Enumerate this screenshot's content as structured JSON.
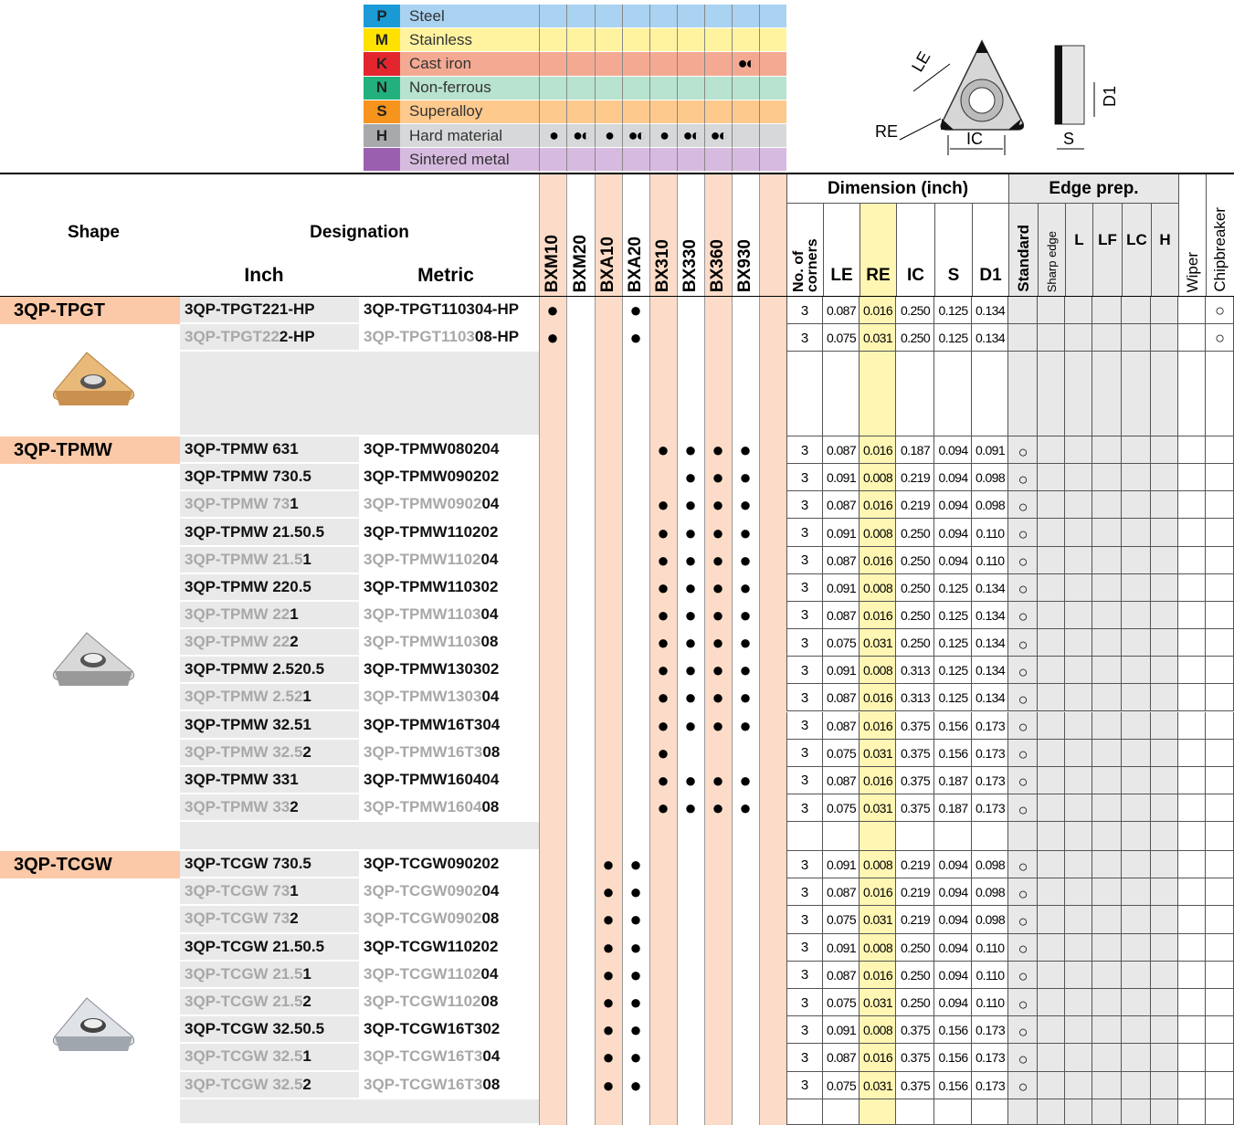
{
  "legend": {
    "materials": [
      {
        "code": "P",
        "name": "Steel",
        "grades": [
          null,
          null,
          null,
          null,
          null,
          null,
          null,
          null
        ]
      },
      {
        "code": "M",
        "name": "Stainless",
        "grades": [
          null,
          null,
          null,
          null,
          null,
          null,
          null,
          null
        ]
      },
      {
        "code": "K",
        "name": "Cast iron",
        "grades": [
          null,
          null,
          null,
          null,
          null,
          null,
          null,
          "●◐"
        ]
      },
      {
        "code": "N",
        "name": "Non-ferrous",
        "grades": [
          null,
          null,
          null,
          null,
          null,
          null,
          null,
          null
        ]
      },
      {
        "code": "S",
        "name": "Superalloy",
        "grades": [
          null,
          null,
          null,
          null,
          null,
          null,
          null,
          null
        ]
      },
      {
        "code": "H",
        "name": "Hard material",
        "grades": [
          "●",
          "●◐",
          "●",
          "●◐",
          "●",
          "●◐",
          "●◐",
          null
        ]
      },
      {
        "name": "Sintered metal",
        "grades": [
          null,
          null,
          null,
          null,
          null,
          null,
          null,
          null
        ]
      }
    ]
  },
  "diagram": {
    "labels": [
      "LE",
      "RE",
      "IC",
      "S",
      "D1"
    ]
  },
  "table": {
    "headers": {
      "shape": "Shape",
      "designation": "Designation",
      "inch": "Inch",
      "metric": "Metric",
      "grades": [
        "BXM10",
        "BXM20",
        "BXA10",
        "BXA20",
        "BX310",
        "BX330",
        "BX360",
        "BX930"
      ],
      "corners": "No. of corners",
      "dimension": "Dimension (inch)",
      "dims": [
        "LE",
        "RE",
        "IC",
        "S",
        "D1"
      ],
      "edge_prep": "Edge prep.",
      "edges": [
        "Standard",
        "Sharp edge",
        "L",
        "LF",
        "LC",
        "H"
      ],
      "wiper": "Wiper",
      "chipbreaker": "Chipbreaker"
    },
    "groups": [
      {
        "shape": "3QP-TPGT",
        "rows": [
          {
            "inch": [
              "3QP-TPGT221-HP"
            ],
            "metric": [
              "3QP-TPGT110304-HP"
            ],
            "grades": [
              "●",
              null,
              null,
              "●",
              null,
              null,
              null,
              null
            ],
            "corners": 3,
            "dims": [
              "0.087",
              "0.016",
              "0.250",
              "0.125",
              "0.134"
            ],
            "standard": null,
            "chipbreaker": "○"
          },
          {
            "inch": [
              "3QP-TPGT22",
              "2-HP"
            ],
            "metric": [
              "3QP-TPGT1103",
              "08-HP"
            ],
            "grades": [
              "●",
              null,
              null,
              "●",
              null,
              null,
              null,
              null
            ],
            "corners": 3,
            "dims": [
              "0.075",
              "0.031",
              "0.250",
              "0.125",
              "0.134"
            ],
            "standard": null,
            "chipbreaker": "○"
          }
        ]
      },
      {
        "shape": "3QP-TPMW",
        "rows": [
          {
            "inch": [
              "3QP-TPMW 631"
            ],
            "metric": [
              "3QP-TPMW080204"
            ],
            "grades": [
              null,
              null,
              null,
              null,
              "●",
              "●",
              "●",
              "●"
            ],
            "corners": 3,
            "dims": [
              "0.087",
              "0.016",
              "0.187",
              "0.094",
              "0.091"
            ],
            "standard": "○",
            "chipbreaker": null
          },
          {
            "inch": [
              "3QP-TPMW 730.5"
            ],
            "metric": [
              "3QP-TPMW090202"
            ],
            "grades": [
              null,
              null,
              null,
              null,
              null,
              "●",
              "●",
              "●"
            ],
            "corners": 3,
            "dims": [
              "0.091",
              "0.008",
              "0.219",
              "0.094",
              "0.098"
            ],
            "standard": "○",
            "chipbreaker": null
          },
          {
            "inch": [
              "3QP-TPMW 73",
              "1"
            ],
            "metric": [
              "3QP-TPMW0902",
              "04"
            ],
            "grades": [
              null,
              null,
              null,
              null,
              "●",
              "●",
              "●",
              "●"
            ],
            "corners": 3,
            "dims": [
              "0.087",
              "0.016",
              "0.219",
              "0.094",
              "0.098"
            ],
            "standard": "○",
            "chipbreaker": null
          },
          {
            "inch": [
              "3QP-TPMW 21.50.5"
            ],
            "metric": [
              "3QP-TPMW110202"
            ],
            "grades": [
              null,
              null,
              null,
              null,
              "●",
              "●",
              "●",
              "●"
            ],
            "corners": 3,
            "dims": [
              "0.091",
              "0.008",
              "0.250",
              "0.094",
              "0.110"
            ],
            "standard": "○",
            "chipbreaker": null
          },
          {
            "inch": [
              "3QP-TPMW 21.5",
              "1"
            ],
            "metric": [
              "3QP-TPMW1102",
              "04"
            ],
            "grades": [
              null,
              null,
              null,
              null,
              "●",
              "●",
              "●",
              "●"
            ],
            "corners": 3,
            "dims": [
              "0.087",
              "0.016",
              "0.250",
              "0.094",
              "0.110"
            ],
            "standard": "○",
            "chipbreaker": null
          },
          {
            "inch": [
              "3QP-TPMW 220.5"
            ],
            "metric": [
              "3QP-TPMW110302"
            ],
            "grades": [
              null,
              null,
              null,
              null,
              "●",
              "●",
              "●",
              "●"
            ],
            "corners": 3,
            "dims": [
              "0.091",
              "0.008",
              "0.250",
              "0.125",
              "0.134"
            ],
            "standard": "○",
            "chipbreaker": null
          },
          {
            "inch": [
              "3QP-TPMW 22",
              "1"
            ],
            "metric": [
              "3QP-TPMW1103",
              "04"
            ],
            "grades": [
              null,
              null,
              null,
              null,
              "●",
              "●",
              "●",
              "●"
            ],
            "corners": 3,
            "dims": [
              "0.087",
              "0.016",
              "0.250",
              "0.125",
              "0.134"
            ],
            "standard": "○",
            "chipbreaker": null
          },
          {
            "inch": [
              "3QP-TPMW 22",
              "2"
            ],
            "metric": [
              "3QP-TPMW1103",
              "08"
            ],
            "grades": [
              null,
              null,
              null,
              null,
              "●",
              "●",
              "●",
              "●"
            ],
            "corners": 3,
            "dims": [
              "0.075",
              "0.031",
              "0.250",
              "0.125",
              "0.134"
            ],
            "standard": "○",
            "chipbreaker": null
          },
          {
            "inch": [
              "3QP-TPMW 2.520.5"
            ],
            "metric": [
              "3QP-TPMW130302"
            ],
            "grades": [
              null,
              null,
              null,
              null,
              "●",
              "●",
              "●",
              "●"
            ],
            "corners": 3,
            "dims": [
              "0.091",
              "0.008",
              "0.313",
              "0.125",
              "0.134"
            ],
            "standard": "○",
            "chipbreaker": null
          },
          {
            "inch": [
              "3QP-TPMW 2.52",
              "1"
            ],
            "metric": [
              "3QP-TPMW1303",
              "04"
            ],
            "grades": [
              null,
              null,
              null,
              null,
              "●",
              "●",
              "●",
              "●"
            ],
            "corners": 3,
            "dims": [
              "0.087",
              "0.016",
              "0.313",
              "0.125",
              "0.134"
            ],
            "standard": "○",
            "chipbreaker": null
          },
          {
            "inch": [
              "3QP-TPMW 32.51"
            ],
            "metric": [
              "3QP-TPMW16T304"
            ],
            "grades": [
              null,
              null,
              null,
              null,
              "●",
              "●",
              "●",
              "●"
            ],
            "corners": 3,
            "dims": [
              "0.087",
              "0.016",
              "0.375",
              "0.156",
              "0.173"
            ],
            "standard": "○",
            "chipbreaker": null
          },
          {
            "inch": [
              "3QP-TPMW 32.5",
              "2"
            ],
            "metric": [
              "3QP-TPMW16T3",
              "08"
            ],
            "grades": [
              null,
              null,
              null,
              null,
              "●",
              null,
              null,
              null
            ],
            "corners": 3,
            "dims": [
              "0.075",
              "0.031",
              "0.375",
              "0.156",
              "0.173"
            ],
            "standard": "○",
            "chipbreaker": null
          },
          {
            "inch": [
              "3QP-TPMW 331"
            ],
            "metric": [
              "3QP-TPMW160404"
            ],
            "grades": [
              null,
              null,
              null,
              null,
              "●",
              "●",
              "●",
              "●"
            ],
            "corners": 3,
            "dims": [
              "0.087",
              "0.016",
              "0.375",
              "0.187",
              "0.173"
            ],
            "standard": "○",
            "chipbreaker": null
          },
          {
            "inch": [
              "3QP-TPMW 33",
              "2"
            ],
            "metric": [
              "3QP-TPMW1604",
              "08"
            ],
            "grades": [
              null,
              null,
              null,
              null,
              "●",
              "●",
              "●",
              "●"
            ],
            "corners": 3,
            "dims": [
              "0.075",
              "0.031",
              "0.375",
              "0.187",
              "0.173"
            ],
            "standard": "○",
            "chipbreaker": null
          }
        ]
      },
      {
        "shape": "3QP-TCGW",
        "rows": [
          {
            "inch": [
              "3QP-TCGW 730.5"
            ],
            "metric": [
              "3QP-TCGW090202"
            ],
            "grades": [
              null,
              null,
              "●",
              "●",
              null,
              null,
              null,
              null
            ],
            "corners": 3,
            "dims": [
              "0.091",
              "0.008",
              "0.219",
              "0.094",
              "0.098"
            ],
            "standard": "○",
            "chipbreaker": null
          },
          {
            "inch": [
              "3QP-TCGW 73",
              "1"
            ],
            "metric": [
              "3QP-TCGW0902",
              "04"
            ],
            "grades": [
              null,
              null,
              "●",
              "●",
              null,
              null,
              null,
              null
            ],
            "corners": 3,
            "dims": [
              "0.087",
              "0.016",
              "0.219",
              "0.094",
              "0.098"
            ],
            "standard": "○",
            "chipbreaker": null
          },
          {
            "inch": [
              "3QP-TCGW 73",
              "2"
            ],
            "metric": [
              "3QP-TCGW0902",
              "08"
            ],
            "grades": [
              null,
              null,
              "●",
              "●",
              null,
              null,
              null,
              null
            ],
            "corners": 3,
            "dims": [
              "0.075",
              "0.031",
              "0.219",
              "0.094",
              "0.098"
            ],
            "standard": "○",
            "chipbreaker": null
          },
          {
            "inch": [
              "3QP-TCGW 21.50.5"
            ],
            "metric": [
              "3QP-TCGW110202"
            ],
            "grades": [
              null,
              null,
              "●",
              "●",
              null,
              null,
              null,
              null
            ],
            "corners": 3,
            "dims": [
              "0.091",
              "0.008",
              "0.250",
              "0.094",
              "0.110"
            ],
            "standard": "○",
            "chipbreaker": null
          },
          {
            "inch": [
              "3QP-TCGW 21.5",
              "1"
            ],
            "metric": [
              "3QP-TCGW1102",
              "04"
            ],
            "grades": [
              null,
              null,
              "●",
              "●",
              null,
              null,
              null,
              null
            ],
            "corners": 3,
            "dims": [
              "0.087",
              "0.016",
              "0.250",
              "0.094",
              "0.110"
            ],
            "standard": "○",
            "chipbreaker": null
          },
          {
            "inch": [
              "3QP-TCGW 21.5",
              "2"
            ],
            "metric": [
              "3QP-TCGW1102",
              "08"
            ],
            "grades": [
              null,
              null,
              "●",
              "●",
              null,
              null,
              null,
              null
            ],
            "corners": 3,
            "dims": [
              "0.075",
              "0.031",
              "0.250",
              "0.094",
              "0.110"
            ],
            "standard": "○",
            "chipbreaker": null
          },
          {
            "inch": [
              "3QP-TCGW 32.50.5"
            ],
            "metric": [
              "3QP-TCGW16T302"
            ],
            "grades": [
              null,
              null,
              "●",
              "●",
              null,
              null,
              null,
              null
            ],
            "corners": 3,
            "dims": [
              "0.091",
              "0.008",
              "0.375",
              "0.156",
              "0.173"
            ],
            "standard": "○",
            "chipbreaker": null
          },
          {
            "inch": [
              "3QP-TCGW 32.5",
              "1"
            ],
            "metric": [
              "3QP-TCGW16T3",
              "04"
            ],
            "grades": [
              null,
              null,
              "●",
              "●",
              null,
              null,
              null,
              null
            ],
            "corners": 3,
            "dims": [
              "0.087",
              "0.016",
              "0.375",
              "0.156",
              "0.173"
            ],
            "standard": "○",
            "chipbreaker": null
          },
          {
            "inch": [
              "3QP-TCGW 32.5",
              "2"
            ],
            "metric": [
              "3QP-TCGW16T3",
              "08"
            ],
            "grades": [
              null,
              null,
              "●",
              "●",
              null,
              null,
              null,
              null
            ],
            "corners": 3,
            "dims": [
              "0.075",
              "0.031",
              "0.375",
              "0.156",
              "0.173"
            ],
            "standard": "○",
            "chipbreaker": null
          }
        ]
      }
    ]
  }
}
